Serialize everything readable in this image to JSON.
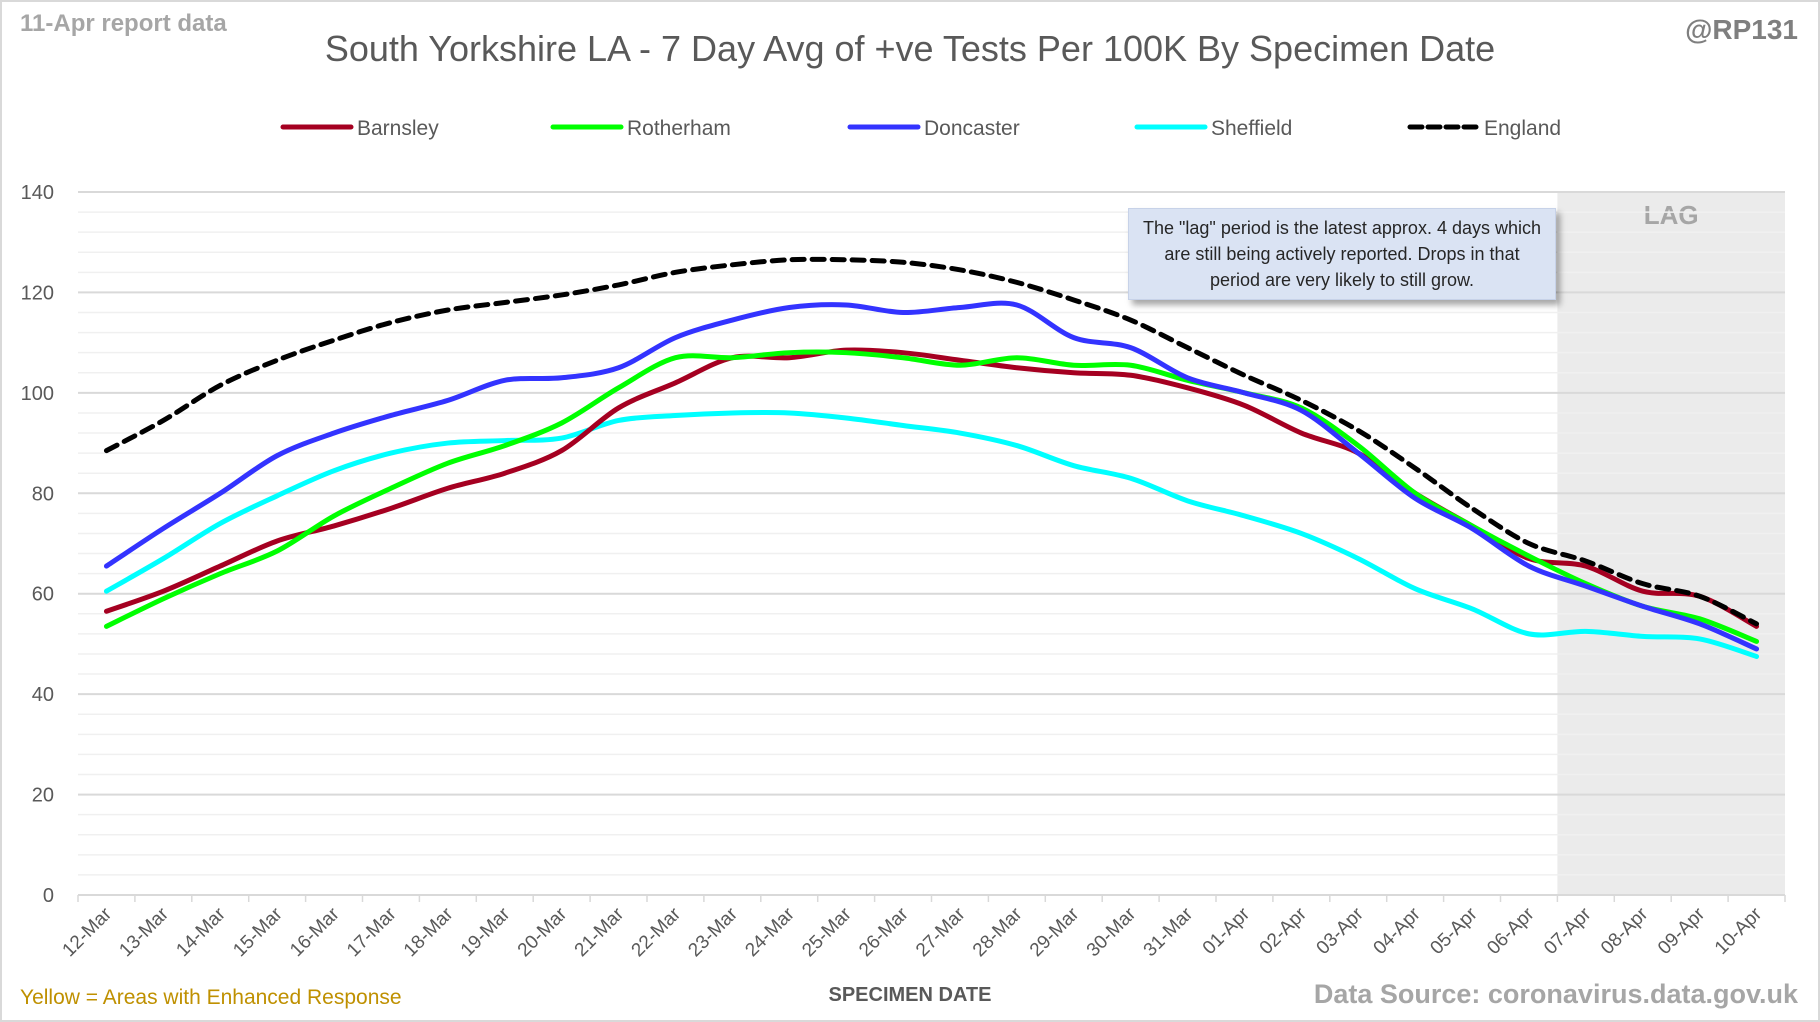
{
  "header": {
    "report_date": "11-Apr report data",
    "handle": "@RP131"
  },
  "footer": {
    "note": "Yellow = Areas with Enhanced Response",
    "source": "Data Source: coronavirus.data.gov.uk"
  },
  "annotation": {
    "text": "The \"lag\" period is the latest approx. 4 days which are still being actively reported. Drops in that period are very likely to still grow.",
    "lag_label": "LAG"
  },
  "chart_data": {
    "type": "line",
    "title": "South Yorkshire LA - 7 Day Avg of +ve Tests Per 100K By Specimen Date",
    "xlabel": "SPECIMEN DATE",
    "ylabel": "",
    "ylim": [
      0,
      140
    ],
    "yticks": [
      0,
      20,
      40,
      60,
      80,
      100,
      120,
      140
    ],
    "grid": true,
    "legend_position": "top",
    "lag_period": {
      "from": "07-Apr",
      "to": "10-Apr",
      "label": "LAG"
    },
    "x": [
      "12-Mar",
      "13-Mar",
      "14-Mar",
      "15-Mar",
      "16-Mar",
      "17-Mar",
      "18-Mar",
      "19-Mar",
      "20-Mar",
      "21-Mar",
      "22-Mar",
      "23-Mar",
      "24-Mar",
      "25-Mar",
      "26-Mar",
      "27-Mar",
      "28-Mar",
      "29-Mar",
      "30-Mar",
      "31-Mar",
      "01-Apr",
      "02-Apr",
      "03-Apr",
      "04-Apr",
      "05-Apr",
      "06-Apr",
      "07-Apr",
      "08-Apr",
      "09-Apr",
      "10-Apr"
    ],
    "series": [
      {
        "name": "Barnsley",
        "color": "#a50021",
        "dash": false,
        "values": [
          56.5,
          60.5,
          65.5,
          70.5,
          73.5,
          77,
          81,
          84,
          88.5,
          97,
          102,
          107,
          107,
          108.5,
          108,
          106.5,
          105,
          104,
          103.5,
          101,
          97.5,
          92,
          88,
          80,
          73.5,
          67,
          65.5,
          60.5,
          59.5,
          53.5
        ]
      },
      {
        "name": "Rotherham",
        "color": "#00ff00",
        "dash": false,
        "values": [
          53.5,
          59,
          64,
          68.5,
          75.5,
          81,
          86,
          89.5,
          94,
          101,
          107,
          107,
          108,
          108,
          107,
          105.5,
          107,
          105.5,
          105.5,
          102.5,
          100,
          97,
          89.5,
          80,
          73.5,
          67.5,
          62,
          57.5,
          55,
          50.5
        ]
      },
      {
        "name": "Doncaster",
        "color": "#3333ff",
        "dash": false,
        "values": [
          65.5,
          73,
          80,
          87.5,
          92,
          95.5,
          98.5,
          102.5,
          103,
          105,
          111,
          114.5,
          117,
          117.5,
          116,
          117,
          117.5,
          111,
          109,
          103,
          100,
          96.5,
          88,
          79,
          73,
          65.5,
          61.5,
          57.5,
          54,
          49
        ]
      },
      {
        "name": "Sheffield",
        "color": "#00ffff",
        "dash": false,
        "values": [
          60.5,
          67,
          74,
          79.5,
          84.5,
          88,
          90,
          90.5,
          91,
          94.5,
          95.5,
          96,
          96,
          95,
          93.5,
          92,
          89.5,
          85.5,
          83,
          78.5,
          75.5,
          72,
          67,
          61,
          57,
          52,
          52.5,
          51.5,
          51,
          47.5
        ]
      },
      {
        "name": "England",
        "color": "#000000",
        "dash": true,
        "values": [
          88.5,
          94.5,
          101.5,
          106.5,
          110.5,
          114,
          116.5,
          118,
          119.5,
          121.5,
          124,
          125.5,
          126.5,
          126.5,
          126,
          124.5,
          122,
          118.5,
          114.5,
          109,
          103.5,
          98.5,
          92.5,
          85,
          77,
          70,
          66.5,
          62,
          59.5,
          54
        ]
      }
    ]
  }
}
